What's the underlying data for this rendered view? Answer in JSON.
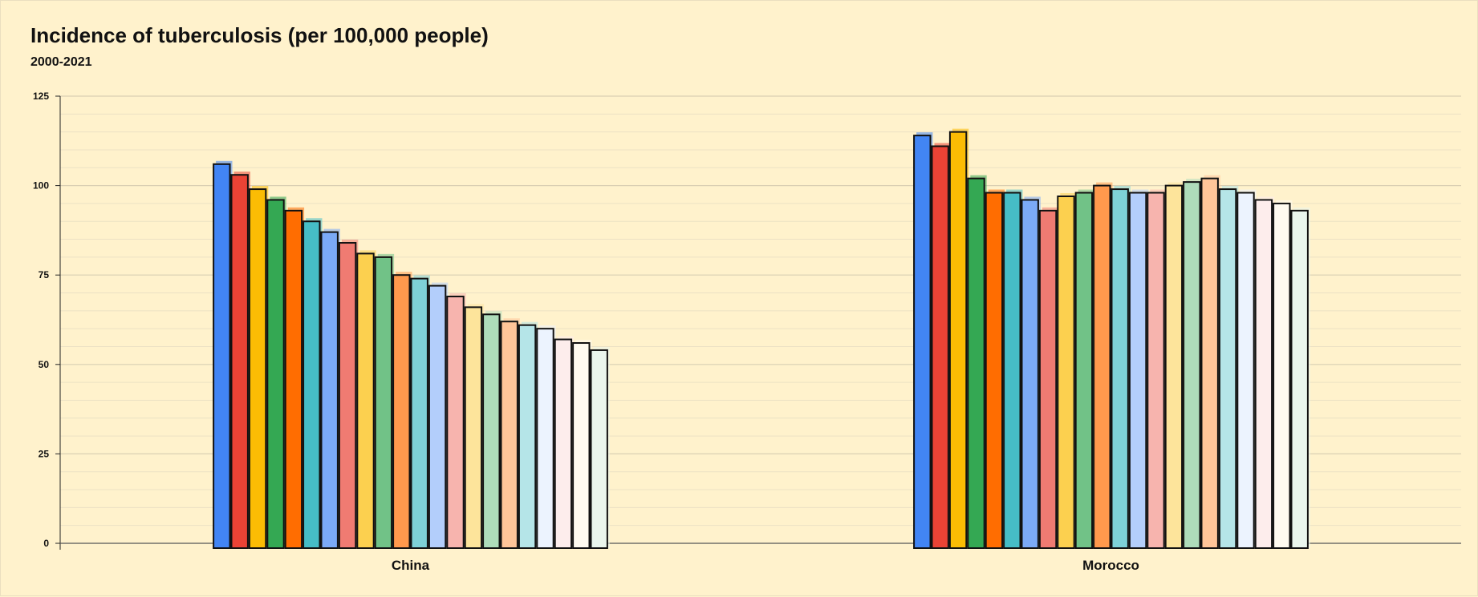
{
  "chart_data": {
    "type": "bar",
    "title": "Incidence of tuberculosis (per 100,000 people)",
    "subtitle": "2000-2021",
    "xlabel": "",
    "ylabel": "",
    "ylim": [
      0,
      125
    ],
    "y_ticks": [
      0,
      25,
      50,
      75,
      100,
      125
    ],
    "grid": true,
    "legend": "none",
    "categories": [
      "China",
      "Morocco"
    ],
    "series": [
      {
        "values": [
          106,
          114
        ],
        "color": "#4285F4"
      },
      {
        "values": [
          103,
          111
        ],
        "color": "#EA4335"
      },
      {
        "values": [
          99,
          115
        ],
        "color": "#FBBC04"
      },
      {
        "values": [
          96,
          102
        ],
        "color": "#34A853"
      },
      {
        "values": [
          93,
          98
        ],
        "color": "#FF6D01"
      },
      {
        "values": [
          90,
          98
        ],
        "color": "#46BDC6"
      },
      {
        "values": [
          87,
          96
        ],
        "color": "#7BAAF7"
      },
      {
        "values": [
          84,
          93
        ],
        "color": "#F07B72"
      },
      {
        "values": [
          81,
          97
        ],
        "color": "#FCD04F"
      },
      {
        "values": [
          80,
          98
        ],
        "color": "#71C287"
      },
      {
        "values": [
          75,
          100
        ],
        "color": "#FF994D"
      },
      {
        "values": [
          74,
          99
        ],
        "color": "#7ED1D7"
      },
      {
        "values": [
          72,
          98
        ],
        "color": "#B3CEFB"
      },
      {
        "values": [
          69,
          98
        ],
        "color": "#F7B4AE"
      },
      {
        "values": [
          66,
          100
        ],
        "color": "#FDE49B"
      },
      {
        "values": [
          64,
          101
        ],
        "color": "#AEDCBA"
      },
      {
        "values": [
          62,
          102
        ],
        "color": "#FFC599"
      },
      {
        "values": [
          61,
          99
        ],
        "color": "#B5E5E8"
      },
      {
        "values": [
          60,
          98
        ],
        "color": "#ECF3FE"
      },
      {
        "values": [
          57,
          96
        ],
        "color": "#FDEDEC"
      },
      {
        "values": [
          56,
          95
        ],
        "color": "#FFFBF0"
      },
      {
        "values": [
          54,
          93
        ],
        "color": "#EAF6ED"
      }
    ]
  }
}
